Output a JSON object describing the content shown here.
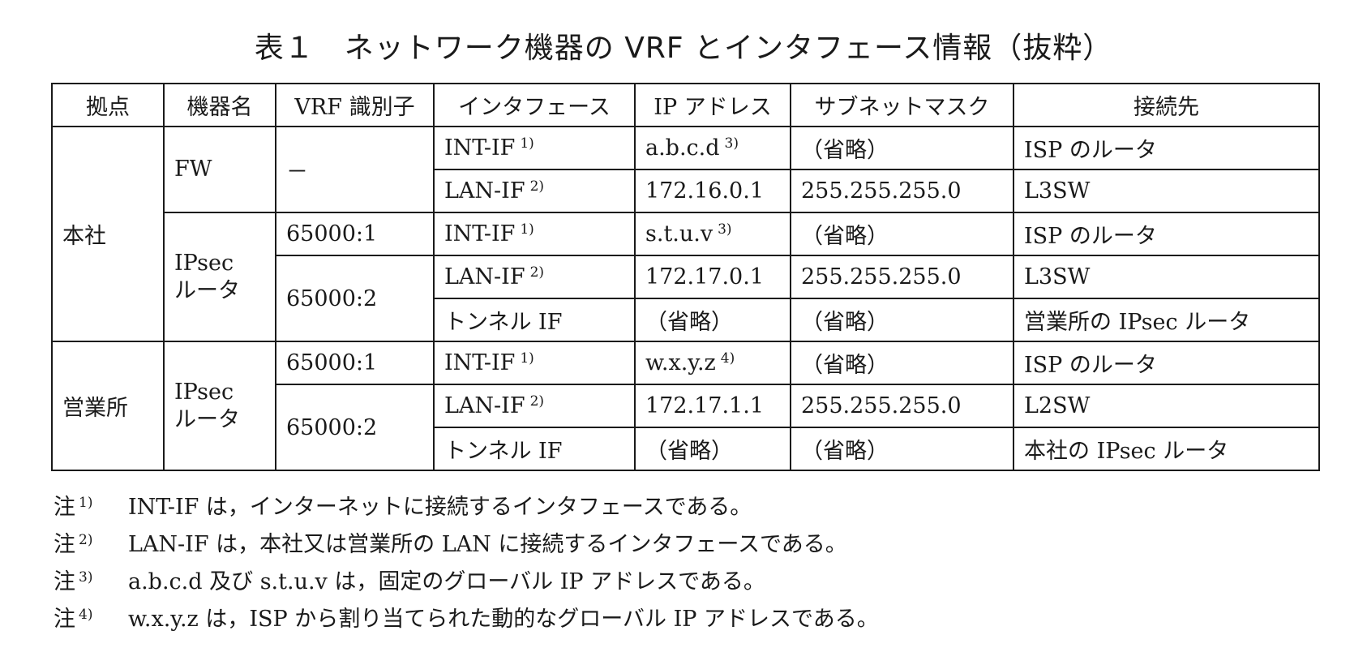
{
  "title": "表１　ネットワーク機器の VRF とインタフェース情報（抜粋）",
  "table": {
    "headers": [
      "拠点",
      "機器名",
      "VRF 識別子",
      "インタフェース",
      "IP アドレス",
      "サブネットマスク",
      "接続先"
    ],
    "sites": [
      {
        "name": "本社",
        "devices": [
          {
            "name_lines": [
              "FW"
            ],
            "vrfs": [
              {
                "id": "－",
                "interfaces": [
                  {
                    "name": "INT-IF",
                    "name_note": "1)",
                    "ip": "a.b.c.d",
                    "ip_note": "3)",
                    "mask": "（省略）",
                    "dest": "ISP のルータ"
                  },
                  {
                    "name": "LAN-IF",
                    "name_note": "2)",
                    "ip": "172.16.0.1",
                    "ip_note": "",
                    "mask": "255.255.255.0",
                    "dest": "L3SW"
                  }
                ]
              }
            ]
          },
          {
            "name_lines": [
              "IPsec",
              "ルータ"
            ],
            "vrfs": [
              {
                "id": "65000:1",
                "interfaces": [
                  {
                    "name": "INT-IF",
                    "name_note": "1)",
                    "ip": "s.t.u.v",
                    "ip_note": "3)",
                    "mask": "（省略）",
                    "dest": "ISP のルータ"
                  }
                ]
              },
              {
                "id": "65000:2",
                "interfaces": [
                  {
                    "name": "LAN-IF",
                    "name_note": "2)",
                    "ip": "172.17.0.1",
                    "ip_note": "",
                    "mask": "255.255.255.0",
                    "dest": "L3SW"
                  },
                  {
                    "name": "トンネル IF",
                    "name_note": "",
                    "ip": "（省略）",
                    "ip_note": "",
                    "mask": "（省略）",
                    "dest": "営業所の IPsec ルータ"
                  }
                ]
              }
            ]
          }
        ]
      },
      {
        "name": "営業所",
        "devices": [
          {
            "name_lines": [
              "IPsec",
              "ルータ"
            ],
            "vrfs": [
              {
                "id": "65000:1",
                "interfaces": [
                  {
                    "name": "INT-IF",
                    "name_note": "1)",
                    "ip": "w.x.y.z",
                    "ip_note": "4)",
                    "mask": "（省略）",
                    "dest": "ISP のルータ"
                  }
                ]
              },
              {
                "id": "65000:2",
                "interfaces": [
                  {
                    "name": "LAN-IF",
                    "name_note": "2)",
                    "ip": "172.17.1.1",
                    "ip_note": "",
                    "mask": "255.255.255.0",
                    "dest": "L2SW"
                  },
                  {
                    "name": "トンネル IF",
                    "name_note": "",
                    "ip": "（省略）",
                    "ip_note": "",
                    "mask": "（省略）",
                    "dest": "本社の IPsec ルータ"
                  }
                ]
              }
            ]
          }
        ]
      }
    ]
  },
  "notes": [
    {
      "label": "注",
      "num": "1)",
      "text": "INT-IF は，インターネットに接続するインタフェースである。"
    },
    {
      "label": "注",
      "num": "2)",
      "text": "LAN-IF は，本社又は営業所の LAN に接続するインタフェースである。"
    },
    {
      "label": "注",
      "num": "3)",
      "text": "a.b.c.d 及び s.t.u.v は，固定のグローバル IP アドレスである。"
    },
    {
      "label": "注",
      "num": "4)",
      "text": "w.x.y.z は，ISP から割り当てられた動的なグローバル IP アドレスである。"
    }
  ]
}
